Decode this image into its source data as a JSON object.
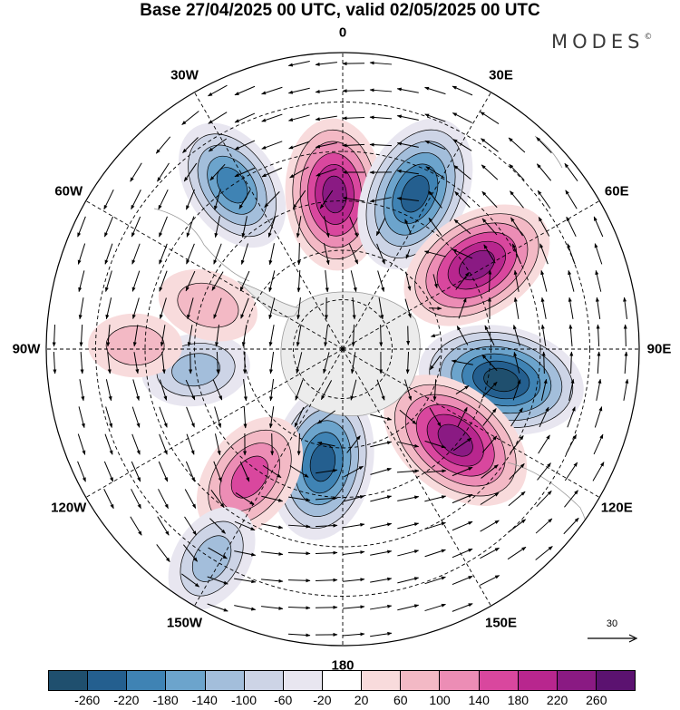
{
  "title": "Base 27/04/2025 00 UTC, valid 02/05/2025 00 UTC",
  "brand": "MODES",
  "brand_mark": "©",
  "projection": "south-polar-stereographic",
  "longitude_labels": [
    {
      "id": "lon-0",
      "text": "0",
      "lon": 0
    },
    {
      "id": "lon-30e",
      "text": "30E",
      "lon": 30
    },
    {
      "id": "lon-60e",
      "text": "60E",
      "lon": 60
    },
    {
      "id": "lon-90e",
      "text": "90E",
      "lon": 90
    },
    {
      "id": "lon-120e",
      "text": "120E",
      "lon": 120
    },
    {
      "id": "lon-150e",
      "text": "150E",
      "lon": 150
    },
    {
      "id": "lon-180",
      "text": "180",
      "lon": 180
    },
    {
      "id": "lon-150w",
      "text": "150W",
      "lon": -150
    },
    {
      "id": "lon-120w",
      "text": "120W",
      "lon": -120
    },
    {
      "id": "lon-90w",
      "text": "90W",
      "lon": -90
    },
    {
      "id": "lon-60w",
      "text": "60W",
      "lon": -60
    },
    {
      "id": "lon-30w",
      "text": "30W",
      "lon": -30
    }
  ],
  "reference_vector": {
    "label": "30"
  },
  "colorbar": {
    "colors": [
      "#1f4f6e",
      "#245f8f",
      "#3f83b4",
      "#6ca4cc",
      "#a3bedb",
      "#cdd4e6",
      "#e8e6f0",
      "#ffffff",
      "#f8dbdc",
      "#f3b9c5",
      "#ec8db5",
      "#d9479e",
      "#b8268e",
      "#8a1a83",
      "#5b1270"
    ],
    "labels": [
      "-260",
      "-220",
      "-180",
      "-140",
      "-100",
      "-60",
      "-20",
      "20",
      "60",
      "100",
      "140",
      "180",
      "220",
      "260"
    ]
  },
  "anomaly_centers": [
    {
      "name": "neg-30w",
      "lon": -34,
      "colat": 60,
      "value": -180
    },
    {
      "name": "pos-0",
      "lon": -3,
      "colat": 47,
      "value": 220
    },
    {
      "name": "neg-25e",
      "lon": 25,
      "colat": 52,
      "value": -240
    },
    {
      "name": "pos-60e",
      "lon": 58,
      "colat": 48,
      "value": 240
    },
    {
      "name": "neg-100e",
      "lon": 101,
      "colat": 49,
      "value": -260
    },
    {
      "name": "pos-125e",
      "lon": 129,
      "colat": 44,
      "value": 250
    },
    {
      "name": "neg-170w",
      "lon": -170,
      "colat": 35,
      "value": -230
    },
    {
      "name": "pos-145w",
      "lon": -144,
      "colat": 48,
      "value": 170
    },
    {
      "name": "neg-150w",
      "lon": -148,
      "colat": 75,
      "value": -110
    },
    {
      "name": "neg-100w",
      "lon": -98,
      "colat": 45,
      "value": -100
    },
    {
      "name": "pos-90w",
      "lon": -89,
      "colat": 63,
      "value": 60
    },
    {
      "name": "pos-75w",
      "lon": -72,
      "colat": 43,
      "value": 80
    }
  ]
}
